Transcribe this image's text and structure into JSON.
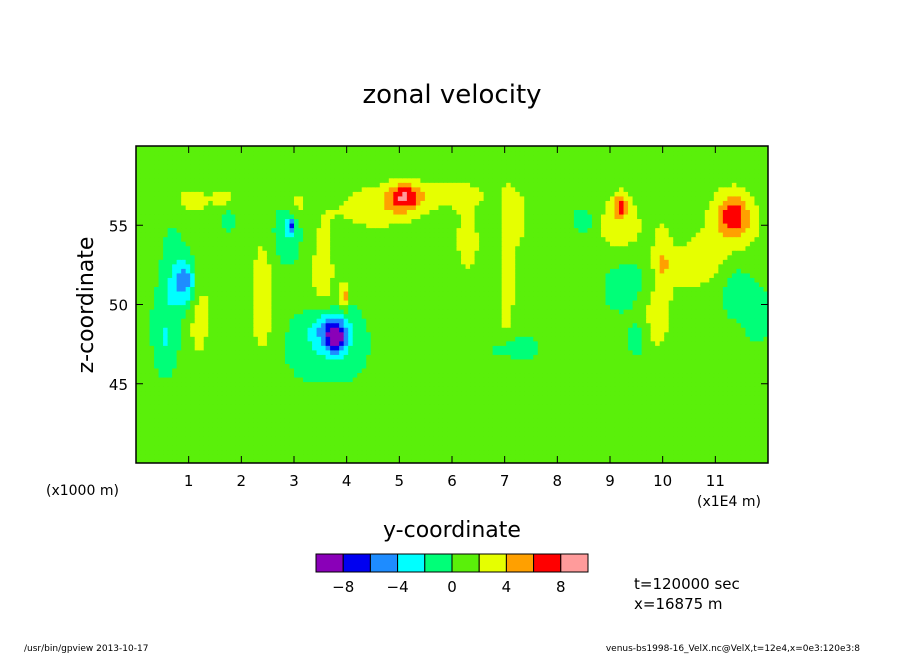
{
  "chart_data": {
    "type": "heatmap",
    "title": "zonal velocity",
    "xlabel": "y-coordinate",
    "ylabel": "z-coordinate",
    "x_scale_note": "(x1E4 m)",
    "y_scale_note": "(x1000 m)",
    "xlim": [
      0.0,
      12.0
    ],
    "ylim": [
      40.0,
      60.0
    ],
    "x_ticks": [
      1,
      2,
      3,
      4,
      5,
      6,
      7,
      8,
      9,
      10,
      11
    ],
    "x_tick_labels": [
      "1",
      "2",
      "3",
      "4",
      "5",
      "6",
      "7",
      "8",
      "9",
      "10",
      "11"
    ],
    "y_ticks": [
      45,
      50,
      55
    ],
    "y_tick_labels": [
      "45",
      "50",
      "55"
    ],
    "colorbar": {
      "levels": [
        -10,
        -8,
        -6,
        -4,
        -2,
        0,
        2,
        4,
        6,
        8,
        10
      ],
      "colors": [
        "#8a00b8",
        "#0000f0",
        "#1e8cff",
        "#00ffff",
        "#00ff78",
        "#5af00a",
        "#e6ff00",
        "#ffa000",
        "#ff0000",
        "#ff9b9b"
      ],
      "tick_values": [
        -8,
        -4,
        0,
        4,
        8
      ],
      "tick_labels": [
        "−8",
        "−4",
        "0",
        "4",
        "8"
      ]
    },
    "background_value": 0.5,
    "features": [
      {
        "y": 0.3,
        "z": 53.5,
        "sy": 0.12,
        "sz": 1.8,
        "value": 1.8
      },
      {
        "y": 0.55,
        "z": 47.5,
        "sy": 0.12,
        "sz": 1.2,
        "value": -1.5
      },
      {
        "y": 0.7,
        "z": 50.5,
        "sy": 0.25,
        "sz": 2.5,
        "value": -2.5
      },
      {
        "y": 0.95,
        "z": 51.5,
        "sy": 0.14,
        "sz": 1.0,
        "value": -5.5
      },
      {
        "y": 1.15,
        "z": 49.5,
        "sy": 0.22,
        "sz": 2.8,
        "value": 2.5
      },
      {
        "y": 1.05,
        "z": 56.6,
        "sy": 0.25,
        "sz": 0.6,
        "value": 2.5
      },
      {
        "y": 1.65,
        "z": 56.8,
        "sy": 0.15,
        "sz": 0.5,
        "value": 2.2
      },
      {
        "y": 1.75,
        "z": 55.4,
        "sy": 0.08,
        "sz": 0.4,
        "value": -2.5
      },
      {
        "y": 2.4,
        "z": 50.5,
        "sy": 0.18,
        "sz": 3.2,
        "value": 2.6
      },
      {
        "y": 2.85,
        "z": 54.5,
        "sy": 0.18,
        "sz": 1.2,
        "value": -2.5
      },
      {
        "y": 2.95,
        "z": 55.0,
        "sy": 0.05,
        "sz": 0.35,
        "value": -6.0
      },
      {
        "y": 3.05,
        "z": 56.5,
        "sy": 0.15,
        "sz": 0.6,
        "value": 2.2
      },
      {
        "y": 3.7,
        "z": 48.5,
        "sy": 0.25,
        "sz": 0.8,
        "value": -5.5
      },
      {
        "y": 3.8,
        "z": 47.8,
        "sy": 0.12,
        "sz": 0.6,
        "value": -6.2
      },
      {
        "y": 3.6,
        "z": 47.5,
        "sy": 0.45,
        "sz": 1.4,
        "value": -2.5
      },
      {
        "y": 3.55,
        "z": 52.0,
        "sy": 0.2,
        "sz": 2.8,
        "value": 2.3
      },
      {
        "y": 3.95,
        "z": 50.5,
        "sy": 0.05,
        "sz": 0.6,
        "value": 5.0
      },
      {
        "y": 4.6,
        "z": 56.0,
        "sy": 0.6,
        "sz": 1.0,
        "value": 2.6
      },
      {
        "y": 5.1,
        "z": 56.8,
        "sy": 0.2,
        "sz": 0.6,
        "value": 5.0
      },
      {
        "y": 5.7,
        "z": 57.0,
        "sy": 0.8,
        "sz": 0.7,
        "value": 2.3
      },
      {
        "y": 6.3,
        "z": 54.0,
        "sy": 0.2,
        "sz": 1.8,
        "value": 2.3
      },
      {
        "y": 7.05,
        "z": 52.0,
        "sy": 0.12,
        "sz": 3.8,
        "value": 2.6
      },
      {
        "y": 7.25,
        "z": 55.5,
        "sy": 0.15,
        "sz": 1.3,
        "value": 2.3
      },
      {
        "y": 7.2,
        "z": 47.3,
        "sy": 0.25,
        "sz": 0.5,
        "value": -2.5
      },
      {
        "y": 8.5,
        "z": 55.3,
        "sy": 0.12,
        "sz": 0.5,
        "value": -2.5
      },
      {
        "y": 9.2,
        "z": 55.0,
        "sy": 0.35,
        "sz": 1.8,
        "value": 2.6
      },
      {
        "y": 9.2,
        "z": 56.2,
        "sy": 0.08,
        "sz": 0.5,
        "value": 5.0
      },
      {
        "y": 9.35,
        "z": 51.5,
        "sy": 0.3,
        "sz": 1.3,
        "value": -2.5
      },
      {
        "y": 9.55,
        "z": 48.0,
        "sy": 0.15,
        "sz": 1.0,
        "value": -2.5
      },
      {
        "y": 9.8,
        "z": 49.0,
        "sy": 0.28,
        "sz": 1.8,
        "value": 2.5
      },
      {
        "y": 10.5,
        "z": 52.5,
        "sy": 0.5,
        "sz": 1.2,
        "value": 2.2
      },
      {
        "y": 10.0,
        "z": 53.0,
        "sy": 0.12,
        "sz": 1.8,
        "value": 2.3
      },
      {
        "y": 11.3,
        "z": 54.7,
        "sy": 0.45,
        "sz": 2.2,
        "value": 2.5
      },
      {
        "y": 11.35,
        "z": 55.6,
        "sy": 0.2,
        "sz": 0.9,
        "value": 5.0
      },
      {
        "y": 11.4,
        "z": 51.5,
        "sy": 0.25,
        "sz": 1.5,
        "value": -2.3
      },
      {
        "y": 11.8,
        "z": 49.5,
        "sy": 0.15,
        "sz": 1.0,
        "value": -2.3
      },
      {
        "y": 6.0,
        "z": 44.5,
        "sy": 2.5,
        "sz": 1.5,
        "value": -0.2
      },
      {
        "y": 3.0,
        "z": 42.0,
        "sy": 2.5,
        "sz": 1.2,
        "value": 1.2
      },
      {
        "y": 10.0,
        "z": 42.5,
        "sy": 2.0,
        "sz": 1.2,
        "value": 1.1
      }
    ]
  },
  "annotations": {
    "time": "t=120000 sec",
    "position": "x=16875 m"
  },
  "footer": {
    "left": "/usr/bin/gpview  2013-10-17",
    "right": "venus-bs1998-16_VelX.nc@VelX,t=12e4,x=0e3:120e3:8"
  }
}
